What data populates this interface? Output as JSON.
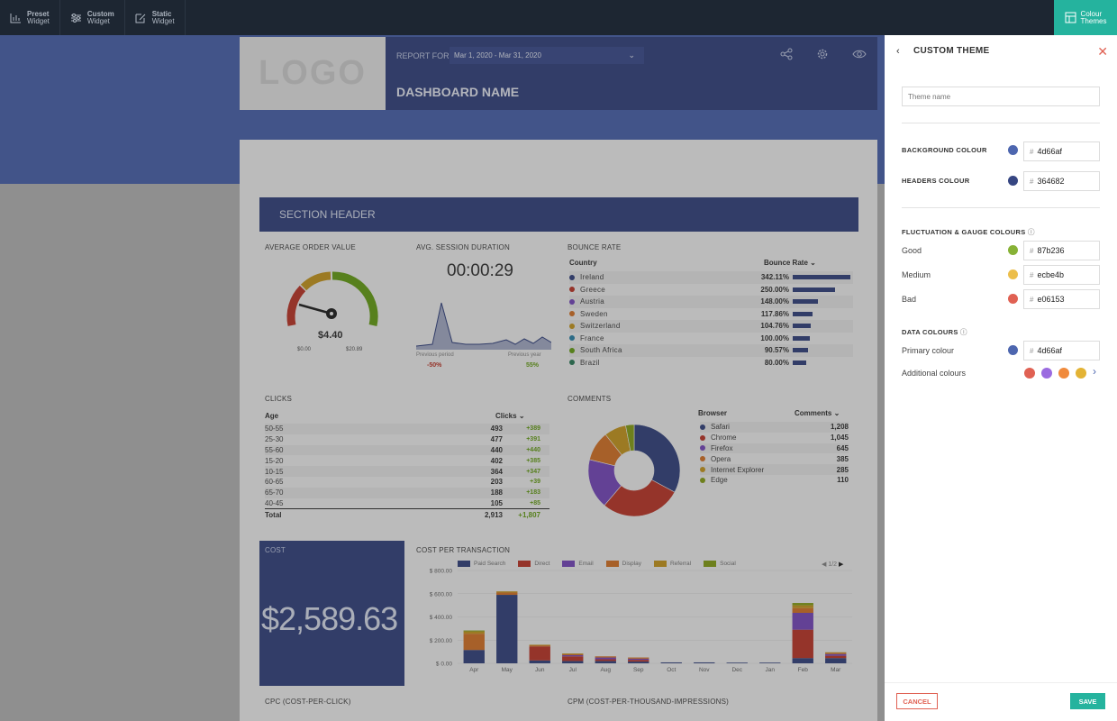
{
  "topbar": {
    "items": [
      {
        "title": "Preset",
        "sub": "Widget",
        "icon": "bar-chart-icon"
      },
      {
        "title": "Custom",
        "sub": "Widget",
        "icon": "sliders-icon"
      },
      {
        "title": "Static",
        "sub": "Widget",
        "icon": "edit-icon"
      }
    ],
    "themes_line1": "Colour",
    "themes_line2": "Themes"
  },
  "header": {
    "logo": "LOGO",
    "report_for": "REPORT FOR",
    "date_range": "Mar 1, 2020 - Mar 31, 2020",
    "dashboard_name": "DASHBOARD NAME"
  },
  "section_header": "SECTION HEADER",
  "aov": {
    "title": "AVERAGE ORDER VALUE",
    "value": "$4.40",
    "min": "$0.00",
    "max": "$20.89"
  },
  "asd": {
    "title": "AVG. SESSION DURATION",
    "value": "00:00:29",
    "prev_period_label": "Previous period",
    "prev_year_label": "Previous year",
    "prev_period": "-50%",
    "prev_year": "55%"
  },
  "bounce": {
    "title": "BOUNCE RATE",
    "col1": "Country",
    "col2": "Bounce Rate",
    "rows": [
      {
        "country": "Ireland",
        "value": "342.11%",
        "pct": 342.11,
        "color": "#364682"
      },
      {
        "country": "Greece",
        "value": "250.00%",
        "pct": 250.0,
        "color": "#c0392b"
      },
      {
        "country": "Austria",
        "value": "148.00%",
        "pct": 148.0,
        "color": "#7a4cc0"
      },
      {
        "country": "Sweden",
        "value": "117.86%",
        "pct": 117.86,
        "color": "#d9762a"
      },
      {
        "country": "Switzerland",
        "value": "104.76%",
        "pct": 104.76,
        "color": "#c99a22"
      },
      {
        "country": "France",
        "value": "100.00%",
        "pct": 100.0,
        "color": "#2e86ab"
      },
      {
        "country": "South Africa",
        "value": "90.57%",
        "pct": 90.57,
        "color": "#6aa21a"
      },
      {
        "country": "Brazil",
        "value": "80.00%",
        "pct": 80.0,
        "color": "#2e7d5b"
      }
    ]
  },
  "clicks": {
    "title": "CLICKS",
    "col1": "Age",
    "col2": "Clicks",
    "rows": [
      {
        "age": "50-55",
        "clicks": "493",
        "delta": "+389"
      },
      {
        "age": "25-30",
        "clicks": "477",
        "delta": "+391"
      },
      {
        "age": "55-60",
        "clicks": "440",
        "delta": "+440"
      },
      {
        "age": "15-20",
        "clicks": "402",
        "delta": "+385"
      },
      {
        "age": "10-15",
        "clicks": "364",
        "delta": "+347"
      },
      {
        "age": "60-65",
        "clicks": "203",
        "delta": "+39"
      },
      {
        "age": "65-70",
        "clicks": "188",
        "delta": "+183"
      },
      {
        "age": "40-45",
        "clicks": "105",
        "delta": "+85"
      }
    ],
    "total_label": "Total",
    "total": "2,913",
    "total_delta": "+1,807"
  },
  "comments": {
    "title": "COMMENTS",
    "col1": "Browser",
    "col2": "Comments",
    "rows": [
      {
        "browser": "Safari",
        "value": "1,208",
        "num": 1208,
        "color": "#364682"
      },
      {
        "browser": "Chrome",
        "value": "1,045",
        "num": 1045,
        "color": "#c0392b"
      },
      {
        "browser": "Firefox",
        "value": "645",
        "num": 645,
        "color": "#7a4cc0"
      },
      {
        "browser": "Opera",
        "value": "385",
        "num": 385,
        "color": "#d9762a"
      },
      {
        "browser": "Internet Explorer",
        "value": "285",
        "num": 285,
        "color": "#c99a22"
      },
      {
        "browser": "Edge",
        "value": "110",
        "num": 110,
        "color": "#8aa21a"
      }
    ]
  },
  "cost": {
    "title": "COST",
    "value": "$2,589.63"
  },
  "cpt": {
    "title": "COST PER TRANSACTION",
    "legend": [
      {
        "name": "Paid Search",
        "color": "#364682"
      },
      {
        "name": "Direct",
        "color": "#c0392b"
      },
      {
        "name": "Email",
        "color": "#7a4cc0"
      },
      {
        "name": "Display",
        "color": "#d9762a"
      },
      {
        "name": "Referral",
        "color": "#c99a22"
      },
      {
        "name": "Social",
        "color": "#8aa21a"
      }
    ],
    "pager": "1/2"
  },
  "chart_data": {
    "type": "bar",
    "categories": [
      "Apr",
      "May",
      "Jun",
      "Jul",
      "Aug",
      "Sep",
      "Oct",
      "Nov",
      "Dec",
      "Jan",
      "Feb",
      "Mar"
    ],
    "series": [
      {
        "name": "Paid Search",
        "values": [
          115,
          590,
          25,
          20,
          20,
          15,
          8,
          8,
          6,
          6,
          45,
          45
        ]
      },
      {
        "name": "Direct",
        "values": [
          0,
          0,
          120,
          40,
          15,
          15,
          0,
          0,
          0,
          0,
          245,
          20
        ]
      },
      {
        "name": "Email",
        "values": [
          0,
          0,
          0,
          10,
          15,
          10,
          0,
          0,
          0,
          0,
          145,
          15
        ]
      },
      {
        "name": "Display",
        "values": [
          140,
          20,
          10,
          10,
          10,
          10,
          0,
          0,
          0,
          0,
          40,
          10
        ]
      },
      {
        "name": "Referral",
        "values": [
          20,
          10,
          5,
          5,
          0,
          0,
          0,
          0,
          0,
          0,
          25,
          5
        ]
      },
      {
        "name": "Social",
        "values": [
          8,
          0,
          0,
          0,
          0,
          0,
          0,
          0,
          0,
          0,
          20,
          0
        ]
      }
    ],
    "yticks": [
      "$ 800.00",
      "$ 600.00",
      "$ 400.00",
      "$ 200.00",
      "$ 0.00"
    ],
    "ylim": [
      0,
      800
    ]
  },
  "cpc": {
    "title": "CPC (COST-PER-CLICK)"
  },
  "cpm": {
    "title": "CPM (COST-PER-THOUSAND-IMPRESSIONS)"
  },
  "panel": {
    "title": "CUSTOM THEME",
    "theme_placeholder": "Theme name",
    "bg_label": "BACKGROUND COLOUR",
    "bg_hex": "4d66af",
    "bg_color": "#4d66af",
    "hd_label": "HEADERS COLOUR",
    "hd_hex": "364682",
    "hd_color": "#364682",
    "fluct_label": "FLUCTUATION & GAUGE COLOURS",
    "good_label": "Good",
    "good_hex": "87b236",
    "good_color": "#87b236",
    "medium_label": "Medium",
    "medium_hex": "ecbe4b",
    "medium_color": "#ecbe4b",
    "bad_label": "Bad",
    "bad_hex": "e06153",
    "bad_color": "#e06153",
    "data_label": "DATA COLOURS",
    "primary_label": "Primary colour",
    "primary_hex": "4d66af",
    "primary_color": "#4d66af",
    "additional_label": "Additional colours",
    "additional_colors": [
      "#e06153",
      "#9b6be0",
      "#f08a3c",
      "#e3b335"
    ],
    "hash": "#",
    "cancel": "CANCEL",
    "save": "SAVE"
  }
}
